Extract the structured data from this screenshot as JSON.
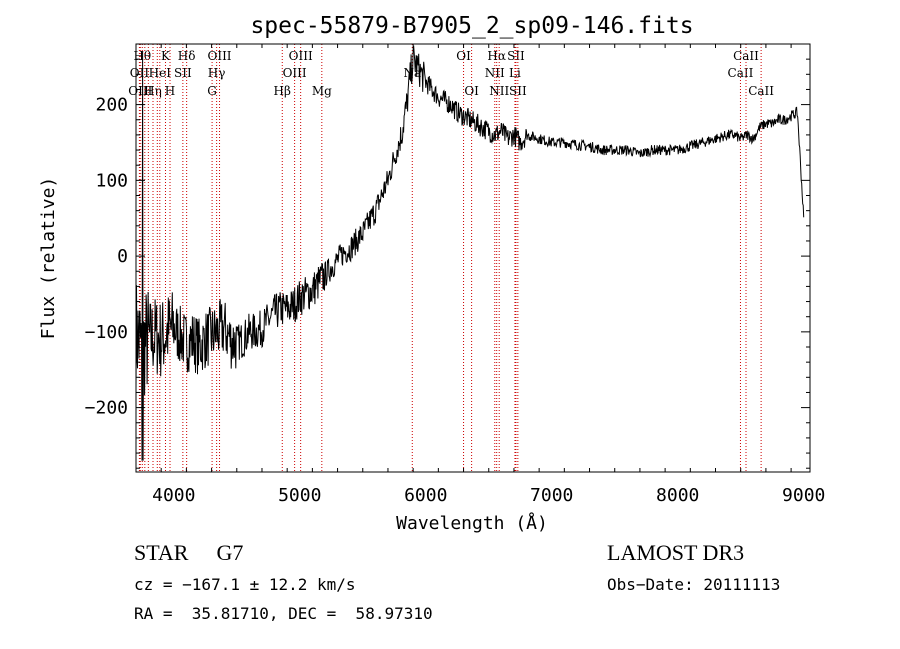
{
  "chart_data": {
    "type": "line",
    "title": "spec-55879-B7905_2_sp09-146.fits",
    "xlabel": "Wavelength (Å)",
    "ylabel": "Flux (relative)",
    "xlim": [
      3700,
      9050
    ],
    "ylim": [
      -285,
      280
    ],
    "xticks": [
      4000,
      5000,
      6000,
      7000,
      8000,
      9000
    ],
    "yticks": [
      -200,
      -100,
      0,
      100,
      200
    ],
    "series": [
      {
        "name": "flux",
        "x": [
          3700,
          3750,
          3800,
          3850,
          3900,
          3950,
          4000,
          4050,
          4100,
          4150,
          4200,
          4250,
          4300,
          4350,
          4400,
          4450,
          4500,
          4550,
          4600,
          4650,
          4700,
          4750,
          4800,
          4850,
          4900,
          4950,
          5000,
          5050,
          5100,
          5150,
          5200,
          5250,
          5300,
          5350,
          5400,
          5450,
          5500,
          5550,
          5600,
          5650,
          5700,
          5750,
          5800,
          5850,
          5880,
          5900,
          5950,
          6000,
          6050,
          6100,
          6150,
          6200,
          6250,
          6300,
          6350,
          6400,
          6450,
          6500,
          6550,
          6600,
          6650,
          6700,
          6750,
          6800,
          6900,
          7000,
          7100,
          7200,
          7300,
          7400,
          7500,
          7600,
          7700,
          7800,
          7900,
          8000,
          8100,
          8200,
          8300,
          8400,
          8450,
          8500,
          8550,
          8600,
          8650,
          8700,
          8750,
          8800,
          8850,
          8900,
          8950,
          9000
        ],
        "y": [
          -100,
          -120,
          -110,
          -105,
          -110,
          -100,
          -95,
          -105,
          -115,
          -110,
          -120,
          -110,
          -105,
          -100,
          -95,
          -110,
          -115,
          -110,
          -100,
          -100,
          -95,
          -85,
          -75,
          -70,
          -70,
          -65,
          -55,
          -50,
          -45,
          -35,
          -25,
          -15,
          -5,
          5,
          10,
          20,
          30,
          45,
          60,
          80,
          100,
          130,
          155,
          200,
          240,
          260,
          245,
          230,
          220,
          210,
          205,
          200,
          190,
          185,
          180,
          175,
          170,
          165,
          160,
          165,
          155,
          160,
          150,
          160,
          155,
          150,
          150,
          147,
          145,
          140,
          140,
          140,
          135,
          140,
          140,
          140,
          145,
          150,
          155,
          160,
          160,
          155,
          160,
          155,
          170,
          175,
          175,
          180,
          180,
          185,
          190,
          50
        ]
      }
    ],
    "lines": [
      {
        "x": 3727,
        "label": "OII",
        "row": 2
      },
      {
        "x": 3734,
        "label": "OIII",
        "row": 3
      },
      {
        "x": 3750,
        "label": "Hθ",
        "row": 1
      },
      {
        "x": 3770,
        "label": "",
        "row": 0
      },
      {
        "x": 3798,
        "label": "",
        "row": 0
      },
      {
        "x": 3835,
        "label": "Hη",
        "row": 3
      },
      {
        "x": 3869,
        "label": "",
        "row": 0
      },
      {
        "x": 3889,
        "label": "HeI",
        "row": 2
      },
      {
        "x": 3934,
        "label": "K",
        "row": 1
      },
      {
        "x": 3970,
        "label": "H",
        "row": 3
      },
      {
        "x": 4072,
        "label": "SII",
        "row": 2
      },
      {
        "x": 4102,
        "label": "Hδ",
        "row": 1
      },
      {
        "x": 4304,
        "label": "G",
        "row": 3
      },
      {
        "x": 4340,
        "label": "Hγ",
        "row": 2
      },
      {
        "x": 4363,
        "label": "OIII",
        "row": 1
      },
      {
        "x": 4861,
        "label": "Hβ",
        "row": 3
      },
      {
        "x": 4959,
        "label": "OIII",
        "row": 2
      },
      {
        "x": 5007,
        "label": "OIII",
        "row": 1
      },
      {
        "x": 5175,
        "label": "Mg",
        "row": 3
      },
      {
        "x": 5893,
        "label": "Na",
        "row": 2
      },
      {
        "x": 6300,
        "label": "OI",
        "row": 1
      },
      {
        "x": 6364,
        "label": "OI",
        "row": 3
      },
      {
        "x": 6548,
        "label": "NII",
        "row": 2
      },
      {
        "x": 6563,
        "label": "Hα",
        "row": 1
      },
      {
        "x": 6583,
        "label": "NII",
        "row": 3
      },
      {
        "x": 6708,
        "label": "Li",
        "row": 2
      },
      {
        "x": 6716,
        "label": "SII",
        "row": 1
      },
      {
        "x": 6731,
        "label": "SII",
        "row": 3
      },
      {
        "x": 8498,
        "label": "CaII",
        "row": 2
      },
      {
        "x": 8542,
        "label": "CaII",
        "row": 1
      },
      {
        "x": 8662,
        "label": "CaII",
        "row": 3
      }
    ],
    "line_color": "#cc0000"
  },
  "info": {
    "classification": "STAR",
    "subclass": "G7",
    "survey": "LAMOST DR3",
    "cz": "cz = −167.1 ± 12.2 km/s",
    "obs_date": "Obs−Date: 20111113",
    "coords": "RA =  35.81710, DEC =  58.97310"
  }
}
